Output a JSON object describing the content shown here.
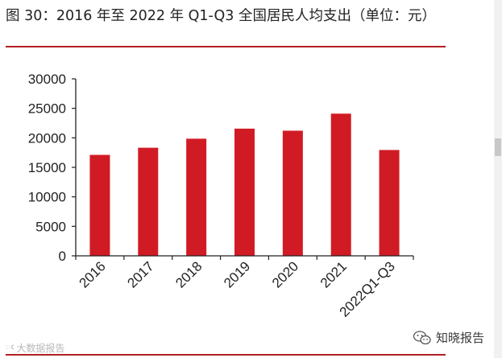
{
  "figure_title": "图 30：2016 年至 2022 年 Q1-Q3 全国居民人均支出（单位：元）",
  "watermark_left": "大数据报告",
  "watermark_right": "知晓报告",
  "colors": {
    "bar": "#d11b24",
    "rule": "#b31f24",
    "axis": "#222222"
  },
  "chart_data": {
    "type": "bar",
    "title": "图 30：2016 年至 2022 年 Q1-Q3 全国居民人均支出（单位：元）",
    "categories": [
      "2016",
      "2017",
      "2018",
      "2019",
      "2020",
      "2021",
      "2022Q1-Q3"
    ],
    "values": [
      17111,
      18322,
      19853,
      21559,
      21210,
      24100,
      17939
    ],
    "ylim": [
      0,
      30000
    ],
    "yticks": [
      0,
      5000,
      10000,
      15000,
      20000,
      25000,
      30000
    ],
    "grid": false,
    "legend": "none"
  }
}
